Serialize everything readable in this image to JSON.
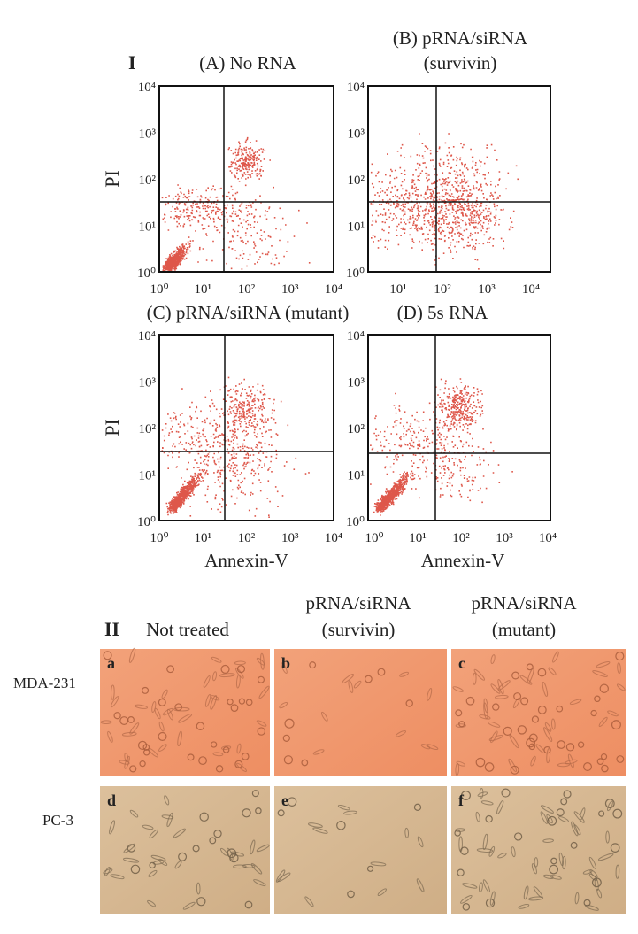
{
  "section_1": {
    "label": "I",
    "axis_ticks": [
      "10⁰",
      "10¹",
      "10²",
      "10³",
      "10⁴"
    ],
    "panels": [
      {
        "title": [
          "(A) No RNA"
        ],
        "y_label": "PI"
      },
      {
        "title": [
          "(B) pRNA/siRNA",
          "(survivin)"
        ]
      },
      {
        "title": [
          "(C) pRNA/siRNA (mutant)"
        ],
        "y_label": "PI",
        "x_label": "Annexin-V"
      },
      {
        "title": [
          "(D) 5s RNA"
        ],
        "x_label": "Annexin-V"
      }
    ]
  },
  "section_2": {
    "label": "II",
    "columns": [
      [
        "Not treated"
      ],
      [
        "pRNA/siRNA",
        "(survivin)"
      ],
      [
        "pRNA/siRNA",
        "(mutant)"
      ]
    ],
    "rows": [
      {
        "label": "MDA-231",
        "panels": [
          "a",
          "b",
          "c"
        ]
      },
      {
        "label": "PC-3",
        "panels": [
          "d",
          "e",
          "f"
        ]
      }
    ]
  }
}
